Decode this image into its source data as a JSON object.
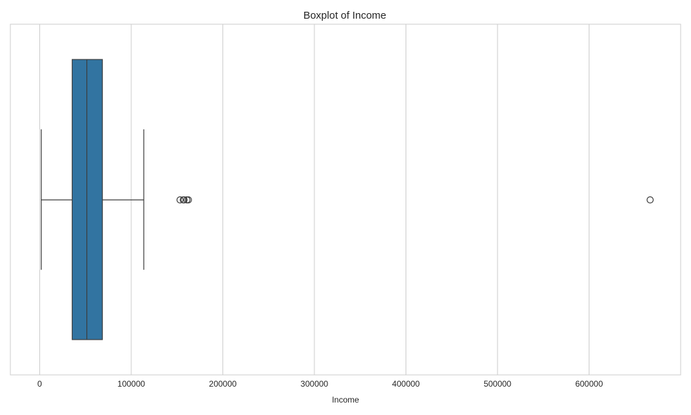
{
  "chart_data": {
    "type": "box",
    "title": "Boxplot of Income",
    "xlabel": "Income",
    "ylabel": "",
    "orientation": "horizontal",
    "xlim": [
      -32000,
      700000
    ],
    "xticks": [
      0,
      100000,
      200000,
      300000,
      400000,
      500000,
      600000
    ],
    "xtick_labels": [
      "0",
      "100000",
      "200000",
      "300000",
      "400000",
      "500000",
      "600000"
    ],
    "grid": true,
    "box": {
      "whisker_low": 1700,
      "q1": 35500,
      "median": 51500,
      "q3": 68500,
      "whisker_high": 113700
    },
    "outliers": [
      153300,
      156900,
      157700,
      160800,
      162400,
      666700
    ],
    "colors": {
      "box_fill": "#3274a1",
      "line": "#3d3d3d",
      "grid": "#cccccc",
      "frame": "#cccccc"
    }
  }
}
